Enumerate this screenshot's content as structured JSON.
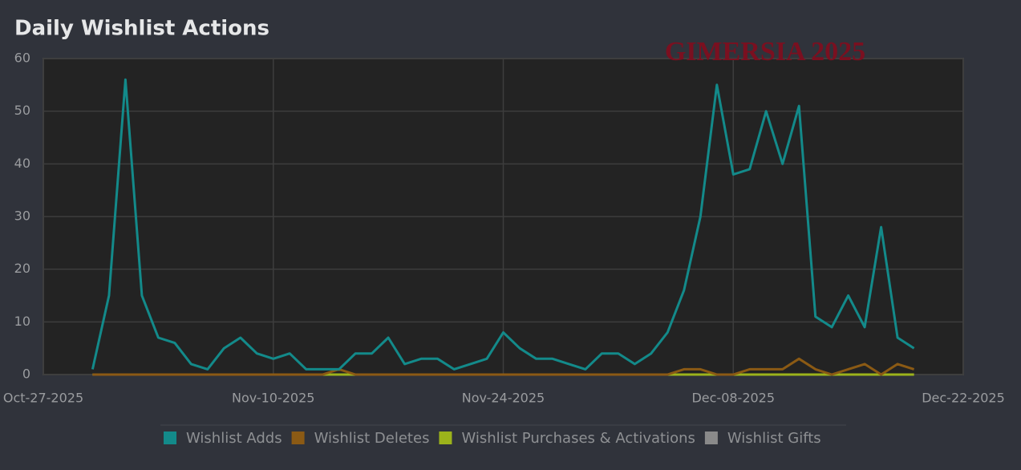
{
  "chart_data": {
    "type": "line",
    "title": "Daily Wishlist Actions",
    "annotation": "GIMERSIA 2025",
    "x": [
      "2025-10-30",
      "2025-10-31",
      "2025-11-01",
      "2025-11-02",
      "2025-11-03",
      "2025-11-04",
      "2025-11-05",
      "2025-11-06",
      "2025-11-07",
      "2025-11-08",
      "2025-11-09",
      "2025-11-10",
      "2025-11-11",
      "2025-11-12",
      "2025-11-13",
      "2025-11-14",
      "2025-11-15",
      "2025-11-16",
      "2025-11-17",
      "2025-11-18",
      "2025-11-19",
      "2025-11-20",
      "2025-11-21",
      "2025-11-22",
      "2025-11-23",
      "2025-11-24",
      "2025-11-25",
      "2025-11-26",
      "2025-11-27",
      "2025-11-28",
      "2025-11-29",
      "2025-11-30",
      "2025-12-01",
      "2025-12-02",
      "2025-12-03",
      "2025-12-04",
      "2025-12-05",
      "2025-12-06",
      "2025-12-07",
      "2025-12-08",
      "2025-12-09",
      "2025-12-10",
      "2025-12-11",
      "2025-12-12",
      "2025-12-13",
      "2025-12-14",
      "2025-12-15",
      "2025-12-16",
      "2025-12-17",
      "2025-12-18",
      "2025-12-19"
    ],
    "series": [
      {
        "name": "Wishlist Adds",
        "color": "#138a8a",
        "values": [
          1,
          15,
          56,
          15,
          7,
          6,
          2,
          1,
          5,
          7,
          4,
          3,
          4,
          1,
          1,
          1,
          4,
          4,
          7,
          2,
          3,
          3,
          1,
          2,
          3,
          8,
          5,
          3,
          3,
          2,
          1,
          4,
          4,
          2,
          4,
          8,
          16,
          30,
          55,
          38,
          39,
          50,
          40,
          51,
          11,
          9,
          15,
          9,
          28,
          7,
          5
        ]
      },
      {
        "name": "Wishlist Deletes",
        "color": "#8b5a14",
        "values": [
          0,
          0,
          0,
          0,
          0,
          0,
          0,
          0,
          0,
          0,
          0,
          0,
          0,
          0,
          0,
          1,
          0,
          0,
          0,
          0,
          0,
          0,
          0,
          0,
          0,
          0,
          0,
          0,
          0,
          0,
          0,
          0,
          0,
          0,
          0,
          0,
          1,
          1,
          0,
          0,
          1,
          1,
          1,
          3,
          1,
          0,
          1,
          2,
          0,
          2,
          1
        ]
      },
      {
        "name": "Wishlist Purchases & Activations",
        "color": "#9cb31b",
        "values": [
          0,
          0,
          0,
          0,
          0,
          0,
          0,
          0,
          0,
          0,
          0,
          0,
          0,
          0,
          0,
          0,
          0,
          0,
          0,
          0,
          0,
          0,
          0,
          0,
          0,
          0,
          0,
          0,
          0,
          0,
          0,
          0,
          0,
          0,
          0,
          0,
          0,
          0,
          0,
          0,
          0,
          0,
          0,
          0,
          0,
          0,
          0,
          0,
          0,
          0,
          0
        ]
      },
      {
        "name": "Wishlist Gifts",
        "color": "#8a8a8a",
        "values": [
          0,
          0,
          0,
          0,
          0,
          0,
          0,
          0,
          0,
          0,
          0,
          0,
          0,
          0,
          0,
          0,
          0,
          0,
          0,
          0,
          0,
          0,
          0,
          0,
          0,
          0,
          0,
          0,
          0,
          0,
          0,
          0,
          0,
          0,
          0,
          0,
          0,
          0,
          0,
          0,
          0,
          0,
          0,
          0,
          0,
          0,
          0,
          0,
          0,
          0,
          0
        ]
      }
    ],
    "xlim": [
      "2025-10-27",
      "2025-12-22"
    ],
    "xticks": [
      {
        "value": "2025-10-27",
        "label": "Oct-27-2025"
      },
      {
        "value": "2025-11-10",
        "label": "Nov-10-2025"
      },
      {
        "value": "2025-11-24",
        "label": "Nov-24-2025"
      },
      {
        "value": "2025-12-08",
        "label": "Dec-08-2025"
      },
      {
        "value": "2025-12-22",
        "label": "Dec-22-2025"
      }
    ],
    "ylim": [
      0,
      60
    ],
    "yticks": [
      0,
      10,
      20,
      30,
      40,
      50,
      60
    ],
    "grid": true
  }
}
